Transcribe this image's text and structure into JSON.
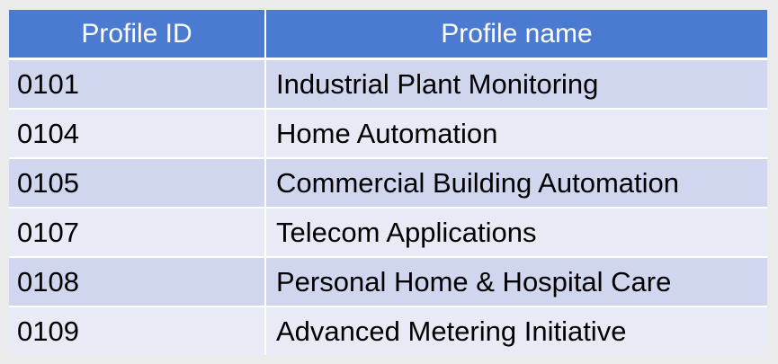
{
  "table": {
    "headers": [
      "Profile ID",
      "Profile name"
    ],
    "rows": [
      {
        "id": "0101",
        "name": "Industrial Plant Monitoring"
      },
      {
        "id": "0104",
        "name": "Home Automation"
      },
      {
        "id": "0105",
        "name": "Commercial Building Automation"
      },
      {
        "id": "0107",
        "name": "Telecom Applications"
      },
      {
        "id": "0108",
        "name": "Personal Home & Hospital Care"
      },
      {
        "id": "0109",
        "name": "Advanced Metering Initiative"
      }
    ]
  },
  "colors": {
    "header_bg": "#4a7bd1",
    "row_dark": "#cfd6ee",
    "row_light": "#e8ebf6",
    "page_bg": "#ebebeb"
  }
}
